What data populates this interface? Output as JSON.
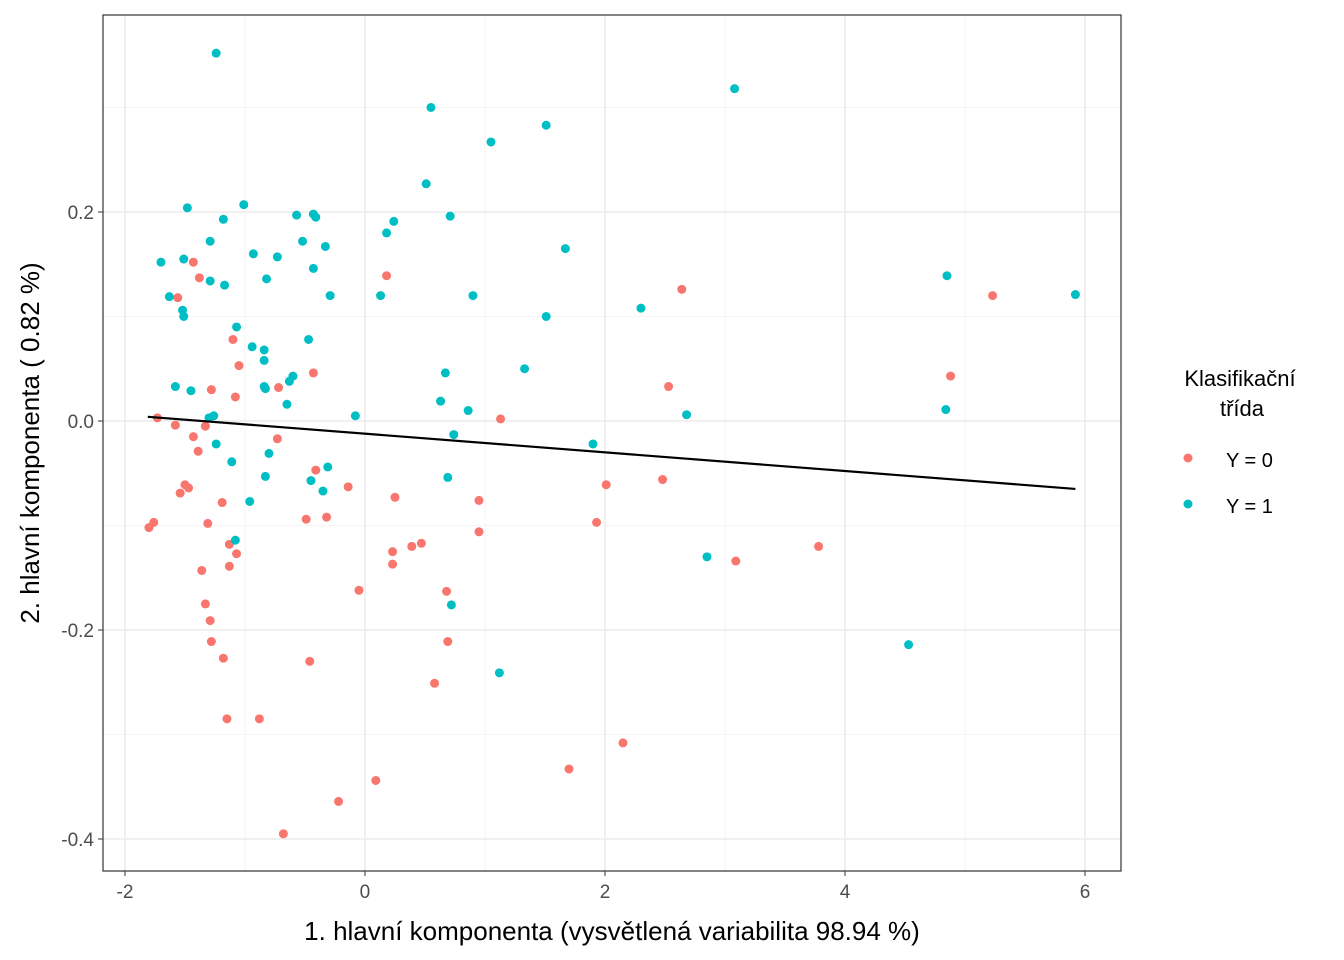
{
  "chart_data": {
    "type": "scatter",
    "xlabel": "1. hlavní komponenta (vysvětlená variabilita 98.94 %)",
    "ylabel": "2. hlavní komponenta ( 0.82 %)",
    "xlim": [
      -2.183,
      6.3
    ],
    "ylim": [
      -0.4306,
      0.3885
    ],
    "xticks": [
      -2,
      0,
      2,
      4,
      6
    ],
    "xtick_labels": [
      "-2",
      "0",
      "2",
      "4",
      "6"
    ],
    "yticks": [
      -0.4,
      -0.2,
      0.0,
      0.2
    ],
    "ytick_labels": [
      "-0.4",
      "-0.2",
      "0.0",
      "0.2"
    ],
    "grid": true,
    "legend": {
      "title": "Klasifikační třída",
      "title_lines": [
        "Klasifikační",
        "třída"
      ],
      "placement": "right"
    },
    "series": [
      {
        "name": "Y = 0",
        "color": "#F8766D",
        "points": [
          [
            -1.43,
            0.152
          ],
          [
            0.18,
            0.139
          ],
          [
            -1.38,
            0.137
          ],
          [
            -1.56,
            0.118
          ],
          [
            2.64,
            0.126
          ],
          [
            5.23,
            0.12
          ],
          [
            -1.1,
            0.078
          ],
          [
            -1.05,
            0.053
          ],
          [
            -0.43,
            0.046
          ],
          [
            4.88,
            0.043
          ],
          [
            -1.28,
            0.03
          ],
          [
            -0.72,
            0.032
          ],
          [
            2.53,
            0.033
          ],
          [
            -1.08,
            0.023
          ],
          [
            -1.73,
            0.003
          ],
          [
            1.13,
            0.002
          ],
          [
            -1.58,
            -0.004
          ],
          [
            -1.33,
            -0.005
          ],
          [
            -1.43,
            -0.015
          ],
          [
            -0.73,
            -0.017
          ],
          [
            -1.39,
            -0.029
          ],
          [
            -0.41,
            -0.047
          ],
          [
            -1.5,
            -0.061
          ],
          [
            -1.47,
            -0.064
          ],
          [
            -1.54,
            -0.069
          ],
          [
            -0.14,
            -0.063
          ],
          [
            2.01,
            -0.061
          ],
          [
            2.48,
            -0.056
          ],
          [
            0.25,
            -0.073
          ],
          [
            0.95,
            -0.076
          ],
          [
            -1.19,
            -0.078
          ],
          [
            -0.49,
            -0.094
          ],
          [
            -0.32,
            -0.092
          ],
          [
            -1.76,
            -0.097
          ],
          [
            -1.8,
            -0.102
          ],
          [
            -1.31,
            -0.098
          ],
          [
            1.93,
            -0.097
          ],
          [
            0.95,
            -0.106
          ],
          [
            -1.13,
            -0.118
          ],
          [
            0.47,
            -0.117
          ],
          [
            0.39,
            -0.12
          ],
          [
            3.78,
            -0.12
          ],
          [
            -1.07,
            -0.127
          ],
          [
            0.23,
            -0.125
          ],
          [
            -1.13,
            -0.139
          ],
          [
            0.23,
            -0.137
          ],
          [
            3.09,
            -0.134
          ],
          [
            -1.36,
            -0.143
          ],
          [
            -0.05,
            -0.162
          ],
          [
            0.68,
            -0.163
          ],
          [
            -1.33,
            -0.175
          ],
          [
            -1.29,
            -0.191
          ],
          [
            -1.28,
            -0.211
          ],
          [
            0.69,
            -0.211
          ],
          [
            -1.18,
            -0.227
          ],
          [
            -0.46,
            -0.23
          ],
          [
            0.58,
            -0.251
          ],
          [
            2.15,
            -0.308
          ],
          [
            -1.15,
            -0.285
          ],
          [
            -0.88,
            -0.285
          ],
          [
            1.7,
            -0.333
          ],
          [
            0.09,
            -0.344
          ],
          [
            -0.22,
            -0.364
          ],
          [
            -0.68,
            -0.395
          ]
        ]
      },
      {
        "name": "Y = 1",
        "color": "#00BFC4",
        "points": [
          [
            -1.24,
            0.352
          ],
          [
            0.55,
            0.3
          ],
          [
            3.08,
            0.318
          ],
          [
            1.05,
            0.267
          ],
          [
            1.51,
            0.283
          ],
          [
            0.51,
            0.227
          ],
          [
            -1.48,
            0.204
          ],
          [
            -1.01,
            0.207
          ],
          [
            -1.18,
            0.193
          ],
          [
            -0.57,
            0.197
          ],
          [
            -0.43,
            0.198
          ],
          [
            -0.41,
            0.195
          ],
          [
            0.71,
            0.196
          ],
          [
            0.24,
            0.191
          ],
          [
            0.18,
            0.18
          ],
          [
            -1.29,
            0.172
          ],
          [
            -0.52,
            0.172
          ],
          [
            -0.33,
            0.167
          ],
          [
            -1.7,
            0.152
          ],
          [
            -0.93,
            0.16
          ],
          [
            -0.73,
            0.157
          ],
          [
            -1.51,
            0.155
          ],
          [
            -0.43,
            0.146
          ],
          [
            1.67,
            0.165
          ],
          [
            -1.29,
            0.134
          ],
          [
            -1.17,
            0.13
          ],
          [
            -0.82,
            0.136
          ],
          [
            -0.29,
            0.12
          ],
          [
            -1.63,
            0.119
          ],
          [
            0.13,
            0.12
          ],
          [
            0.9,
            0.12
          ],
          [
            4.85,
            0.139
          ],
          [
            5.92,
            0.121
          ],
          [
            2.3,
            0.108
          ],
          [
            -1.52,
            0.106
          ],
          [
            -1.51,
            0.1
          ],
          [
            1.51,
            0.1
          ],
          [
            -1.07,
            0.09
          ],
          [
            -0.47,
            0.078
          ],
          [
            -0.94,
            0.071
          ],
          [
            -0.84,
            0.068
          ],
          [
            -0.84,
            0.058
          ],
          [
            1.33,
            0.05
          ],
          [
            0.67,
            0.046
          ],
          [
            -0.6,
            0.043
          ],
          [
            -0.63,
            0.038
          ],
          [
            -1.58,
            0.033
          ],
          [
            -0.84,
            0.033
          ],
          [
            -0.83,
            0.031
          ],
          [
            -1.45,
            0.029
          ],
          [
            0.63,
            0.019
          ],
          [
            -0.65,
            0.016
          ],
          [
            0.86,
            0.01
          ],
          [
            4.84,
            0.011
          ],
          [
            -0.08,
            0.005
          ],
          [
            -1.26,
            0.005
          ],
          [
            -1.3,
            0.003
          ],
          [
            2.68,
            0.006
          ],
          [
            0.74,
            -0.013
          ],
          [
            1.9,
            -0.022
          ],
          [
            -1.24,
            -0.022
          ],
          [
            -1.11,
            -0.039
          ],
          [
            -0.8,
            -0.031
          ],
          [
            -0.31,
            -0.044
          ],
          [
            -0.83,
            -0.053
          ],
          [
            0.69,
            -0.054
          ],
          [
            -0.45,
            -0.057
          ],
          [
            -0.35,
            -0.067
          ],
          [
            -0.96,
            -0.077
          ],
          [
            -1.08,
            -0.114
          ],
          [
            2.85,
            -0.13
          ],
          [
            0.72,
            -0.176
          ],
          [
            1.12,
            -0.241
          ],
          [
            4.53,
            -0.214
          ]
        ]
      }
    ],
    "trend_line": {
      "color": "#000000",
      "from": [
        -1.81,
        0.004
      ],
      "to": [
        5.92,
        -0.065
      ]
    }
  }
}
